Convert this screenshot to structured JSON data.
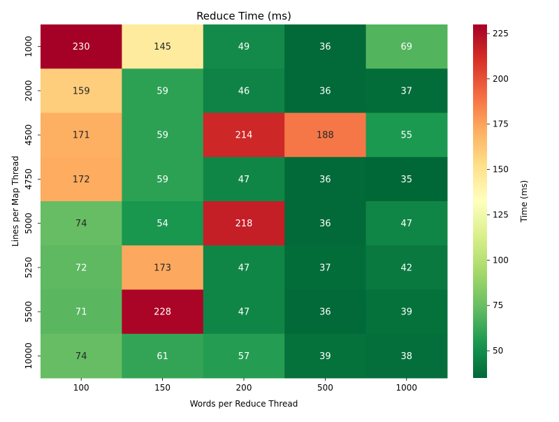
{
  "chart_data": {
    "type": "heatmap",
    "title": "Reduce Time (ms)",
    "xlabel": "Words per Reduce Thread",
    "ylabel": "Lines per Map Thread",
    "x_categories": [
      "100",
      "150",
      "200",
      "500",
      "1000"
    ],
    "y_categories": [
      "1000",
      "2000",
      "4500",
      "4750",
      "5000",
      "5250",
      "5500",
      "10000"
    ],
    "values": [
      [
        230,
        145,
        49,
        36,
        69
      ],
      [
        159,
        59,
        46,
        36,
        37
      ],
      [
        171,
        59,
        214,
        188,
        55
      ],
      [
        172,
        59,
        47,
        36,
        35
      ],
      [
        74,
        54,
        218,
        36,
        47
      ],
      [
        72,
        173,
        47,
        37,
        42
      ],
      [
        71,
        228,
        47,
        36,
        39
      ],
      [
        74,
        61,
        57,
        39,
        38
      ]
    ],
    "colorbar": {
      "label": "Time (ms)",
      "vmin": 35,
      "vmax": 230,
      "ticks": [
        50,
        75,
        100,
        125,
        150,
        175,
        200,
        225
      ],
      "colormap": "RdYlGn_r"
    },
    "annotate": true,
    "grid": false
  }
}
